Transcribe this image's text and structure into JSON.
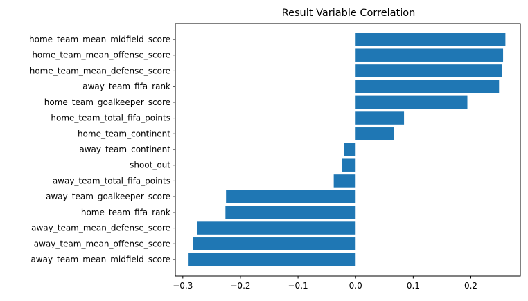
{
  "chart_data": {
    "type": "bar",
    "orientation": "horizontal",
    "title": "Result Variable Correlation",
    "xlabel": "",
    "ylabel": "",
    "bar_color": "#1f77b4",
    "xlim": [
      -0.313,
      0.286
    ],
    "xticks": [
      -0.3,
      -0.2,
      -0.1,
      0.0,
      0.1,
      0.2
    ],
    "xtick_labels": [
      "−0.3",
      "−0.2",
      "−0.1",
      "0.0",
      "0.1",
      "0.2"
    ],
    "grid": false,
    "categories": [
      "home_team_mean_midfield_score",
      "home_team_mean_offense_score",
      "home_team_mean_defense_score",
      "away_team_fifa_rank",
      "home_team_goalkeeper_score",
      "home_team_total_fifa_points",
      "home_team_continent",
      "away_team_continent",
      "shoot_out",
      "away_team_total_fifa_points",
      "away_team_goalkeeper_score",
      "home_team_fifa_rank",
      "away_team_mean_defense_score",
      "away_team_mean_offense_score",
      "away_team_mean_midfield_score"
    ],
    "values": [
      0.26,
      0.256,
      0.254,
      0.249,
      0.194,
      0.084,
      0.067,
      -0.02,
      -0.024,
      -0.038,
      -0.225,
      -0.226,
      -0.275,
      -0.282,
      -0.29
    ]
  }
}
